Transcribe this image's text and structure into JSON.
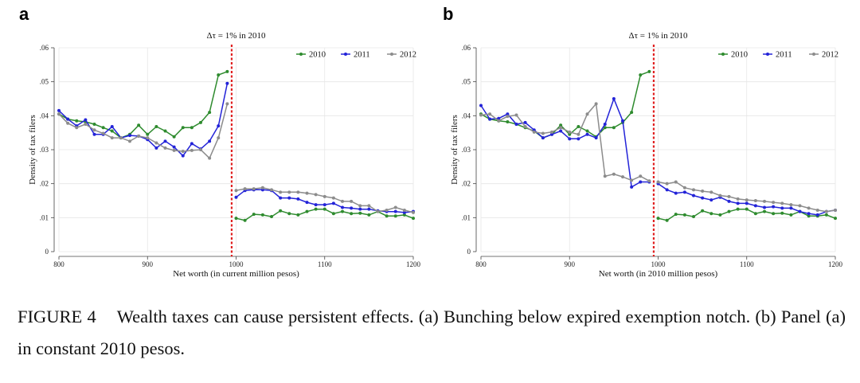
{
  "caption": {
    "label": "FIGURE 4",
    "text": "Wealth taxes can cause persistent effects. (a) Bunching below expired exemption notch. (b) Panel (a) in constant 2010 pesos."
  },
  "colors": {
    "2010": "#2e8b2e",
    "2011": "#2323d8",
    "2012": "#8c8c8c",
    "notch": "#e02020"
  },
  "chart_data": [
    {
      "panel": "a",
      "type": "line",
      "title": "Δτ = 1% in 2010",
      "xlabel": "Net worth (in current million pesos)",
      "ylabel": "Density of tax filers",
      "xlim": [
        800,
        1200
      ],
      "ylim": [
        0,
        0.06
      ],
      "xticks": [
        800,
        900,
        1000,
        1100,
        1200
      ],
      "yticks": [
        0,
        0.01,
        0.02,
        0.03,
        0.04,
        0.05,
        0.06
      ],
      "ytick_labels": [
        "0",
        ".01",
        ".02",
        ".03",
        ".04",
        ".05",
        ".06"
      ],
      "notch_x": 995,
      "legend": [
        "2010",
        "2011",
        "2012"
      ],
      "series": [
        {
          "name": "2010",
          "pre_x": [
            800,
            810,
            820,
            830,
            840,
            850,
            860,
            870,
            880,
            890,
            900,
            910,
            920,
            930,
            940,
            950,
            960,
            970,
            980,
            990
          ],
          "pre_y": [
            0.0405,
            0.039,
            0.0385,
            0.0382,
            0.0375,
            0.0365,
            0.0355,
            0.0335,
            0.0345,
            0.0372,
            0.0345,
            0.0368,
            0.0355,
            0.0338,
            0.0365,
            0.0365,
            0.038,
            0.041,
            0.052,
            0.053
          ],
          "post_x": [
            1000,
            1010,
            1020,
            1030,
            1040,
            1050,
            1060,
            1070,
            1080,
            1090,
            1100,
            1110,
            1120,
            1130,
            1140,
            1150,
            1160,
            1170,
            1180,
            1190,
            1200
          ],
          "post_y": [
            0.0098,
            0.0092,
            0.011,
            0.0108,
            0.0103,
            0.012,
            0.0112,
            0.0108,
            0.0118,
            0.0125,
            0.0125,
            0.0112,
            0.0118,
            0.0112,
            0.0113,
            0.0108,
            0.0118,
            0.0105,
            0.0105,
            0.0108,
            0.0098
          ]
        },
        {
          "name": "2011",
          "pre_x": [
            800,
            810,
            820,
            830,
            840,
            850,
            860,
            870,
            880,
            890,
            900,
            910,
            920,
            930,
            940,
            950,
            960,
            970,
            980,
            990
          ],
          "pre_y": [
            0.0415,
            0.039,
            0.037,
            0.0388,
            0.0345,
            0.0345,
            0.0368,
            0.0335,
            0.0342,
            0.034,
            0.033,
            0.0305,
            0.0325,
            0.0308,
            0.0282,
            0.0318,
            0.0302,
            0.0325,
            0.037,
            0.0495
          ],
          "post_x": [
            1000,
            1010,
            1020,
            1030,
            1040,
            1050,
            1060,
            1070,
            1080,
            1090,
            1100,
            1110,
            1120,
            1130,
            1140,
            1150,
            1160,
            1170,
            1180,
            1190,
            1200
          ],
          "post_y": [
            0.016,
            0.018,
            0.0182,
            0.0182,
            0.018,
            0.0158,
            0.0158,
            0.0155,
            0.0145,
            0.0138,
            0.0138,
            0.0142,
            0.013,
            0.0128,
            0.0125,
            0.0125,
            0.012,
            0.0118,
            0.0118,
            0.0115,
            0.0118
          ]
        },
        {
          "name": "2012",
          "pre_x": [
            800,
            810,
            820,
            830,
            840,
            850,
            860,
            870,
            880,
            890,
            900,
            910,
            920,
            930,
            940,
            950,
            960,
            970,
            980,
            990
          ],
          "pre_y": [
            0.0405,
            0.0378,
            0.0365,
            0.0375,
            0.0358,
            0.0348,
            0.0335,
            0.0335,
            0.0325,
            0.034,
            0.0335,
            0.032,
            0.0305,
            0.0298,
            0.0295,
            0.0298,
            0.03,
            0.0275,
            0.0335,
            0.0435
          ],
          "post_x": [
            1000,
            1010,
            1020,
            1030,
            1040,
            1050,
            1060,
            1070,
            1080,
            1090,
            1100,
            1110,
            1120,
            1130,
            1140,
            1150,
            1160,
            1170,
            1180,
            1190,
            1200
          ],
          "post_y": [
            0.018,
            0.0185,
            0.0185,
            0.0188,
            0.0182,
            0.0175,
            0.0175,
            0.0175,
            0.0172,
            0.0168,
            0.0162,
            0.0158,
            0.0148,
            0.0148,
            0.0135,
            0.0135,
            0.0118,
            0.0122,
            0.013,
            0.0122,
            0.0115
          ]
        }
      ]
    },
    {
      "panel": "b",
      "type": "line",
      "title": "Δτ = 1% in 2010",
      "xlabel": "Net worth (in 2010 million pesos)",
      "ylabel": "Density of tax filers",
      "xlim": [
        800,
        1200
      ],
      "ylim": [
        0,
        0.06
      ],
      "xticks": [
        800,
        900,
        1000,
        1100,
        1200
      ],
      "yticks": [
        0,
        0.01,
        0.02,
        0.03,
        0.04,
        0.05,
        0.06
      ],
      "ytick_labels": [
        "0",
        ".01",
        ".02",
        ".03",
        ".04",
        ".05",
        ".06"
      ],
      "notch_x": 995,
      "legend": [
        "2010",
        "2011",
        "2012"
      ],
      "series": [
        {
          "name": "2010",
          "pre_x": [
            800,
            810,
            820,
            830,
            840,
            850,
            860,
            870,
            880,
            890,
            900,
            910,
            920,
            930,
            940,
            950,
            960,
            970,
            980,
            990
          ],
          "pre_y": [
            0.0405,
            0.039,
            0.0385,
            0.0382,
            0.0375,
            0.0365,
            0.0355,
            0.0335,
            0.0345,
            0.0372,
            0.0345,
            0.0368,
            0.0355,
            0.0338,
            0.0365,
            0.0365,
            0.038,
            0.041,
            0.052,
            0.053
          ],
          "post_x": [
            1000,
            1010,
            1020,
            1030,
            1040,
            1050,
            1060,
            1070,
            1080,
            1090,
            1100,
            1110,
            1120,
            1130,
            1140,
            1150,
            1160,
            1170,
            1180,
            1190,
            1200
          ],
          "post_y": [
            0.0098,
            0.0092,
            0.011,
            0.0108,
            0.0103,
            0.012,
            0.0112,
            0.0108,
            0.0118,
            0.0125,
            0.0125,
            0.0112,
            0.0118,
            0.0112,
            0.0113,
            0.0108,
            0.0118,
            0.0105,
            0.0105,
            0.0108,
            0.0098
          ]
        },
        {
          "name": "2011",
          "pre_x": [
            800,
            810,
            820,
            830,
            840,
            850,
            860,
            870,
            880,
            890,
            900,
            910,
            920,
            930,
            940,
            950,
            960,
            970,
            980,
            990
          ],
          "pre_y": [
            0.043,
            0.039,
            0.0392,
            0.0405,
            0.0375,
            0.038,
            0.0358,
            0.0335,
            0.0345,
            0.0355,
            0.0332,
            0.0332,
            0.0345,
            0.0335,
            0.0375,
            0.045,
            0.0385,
            0.019,
            0.0205,
            0.0205
          ],
          "post_x": [
            1000,
            1010,
            1020,
            1030,
            1040,
            1050,
            1060,
            1070,
            1080,
            1090,
            1100,
            1110,
            1120,
            1130,
            1140,
            1150,
            1160,
            1170,
            1180,
            1190,
            1200
          ],
          "post_y": [
            0.02,
            0.0182,
            0.0172,
            0.0175,
            0.0165,
            0.0158,
            0.0152,
            0.016,
            0.0148,
            0.0142,
            0.0142,
            0.0135,
            0.013,
            0.0132,
            0.0128,
            0.0128,
            0.0118,
            0.0112,
            0.0108,
            0.0118,
            0.0122
          ]
        },
        {
          "name": "2012",
          "pre_x": [
            800,
            810,
            820,
            830,
            840,
            850,
            860,
            870,
            880,
            890,
            900,
            910,
            920,
            930,
            940,
            950,
            960,
            970,
            980,
            990
          ],
          "pre_y": [
            0.0402,
            0.0405,
            0.0385,
            0.0398,
            0.0402,
            0.0368,
            0.0352,
            0.0348,
            0.0352,
            0.0365,
            0.0352,
            0.0345,
            0.0405,
            0.0435,
            0.0222,
            0.0228,
            0.022,
            0.021,
            0.0222,
            0.0208
          ],
          "post_x": [
            1000,
            1010,
            1020,
            1030,
            1040,
            1050,
            1060,
            1070,
            1080,
            1090,
            1100,
            1110,
            1120,
            1130,
            1140,
            1150,
            1160,
            1170,
            1180,
            1190,
            1200
          ],
          "post_y": [
            0.0205,
            0.02,
            0.0205,
            0.0188,
            0.0182,
            0.0178,
            0.0175,
            0.0165,
            0.0162,
            0.0155,
            0.0152,
            0.015,
            0.0148,
            0.0145,
            0.0142,
            0.0138,
            0.0135,
            0.0128,
            0.0122,
            0.0118,
            0.0122
          ]
        }
      ]
    }
  ]
}
